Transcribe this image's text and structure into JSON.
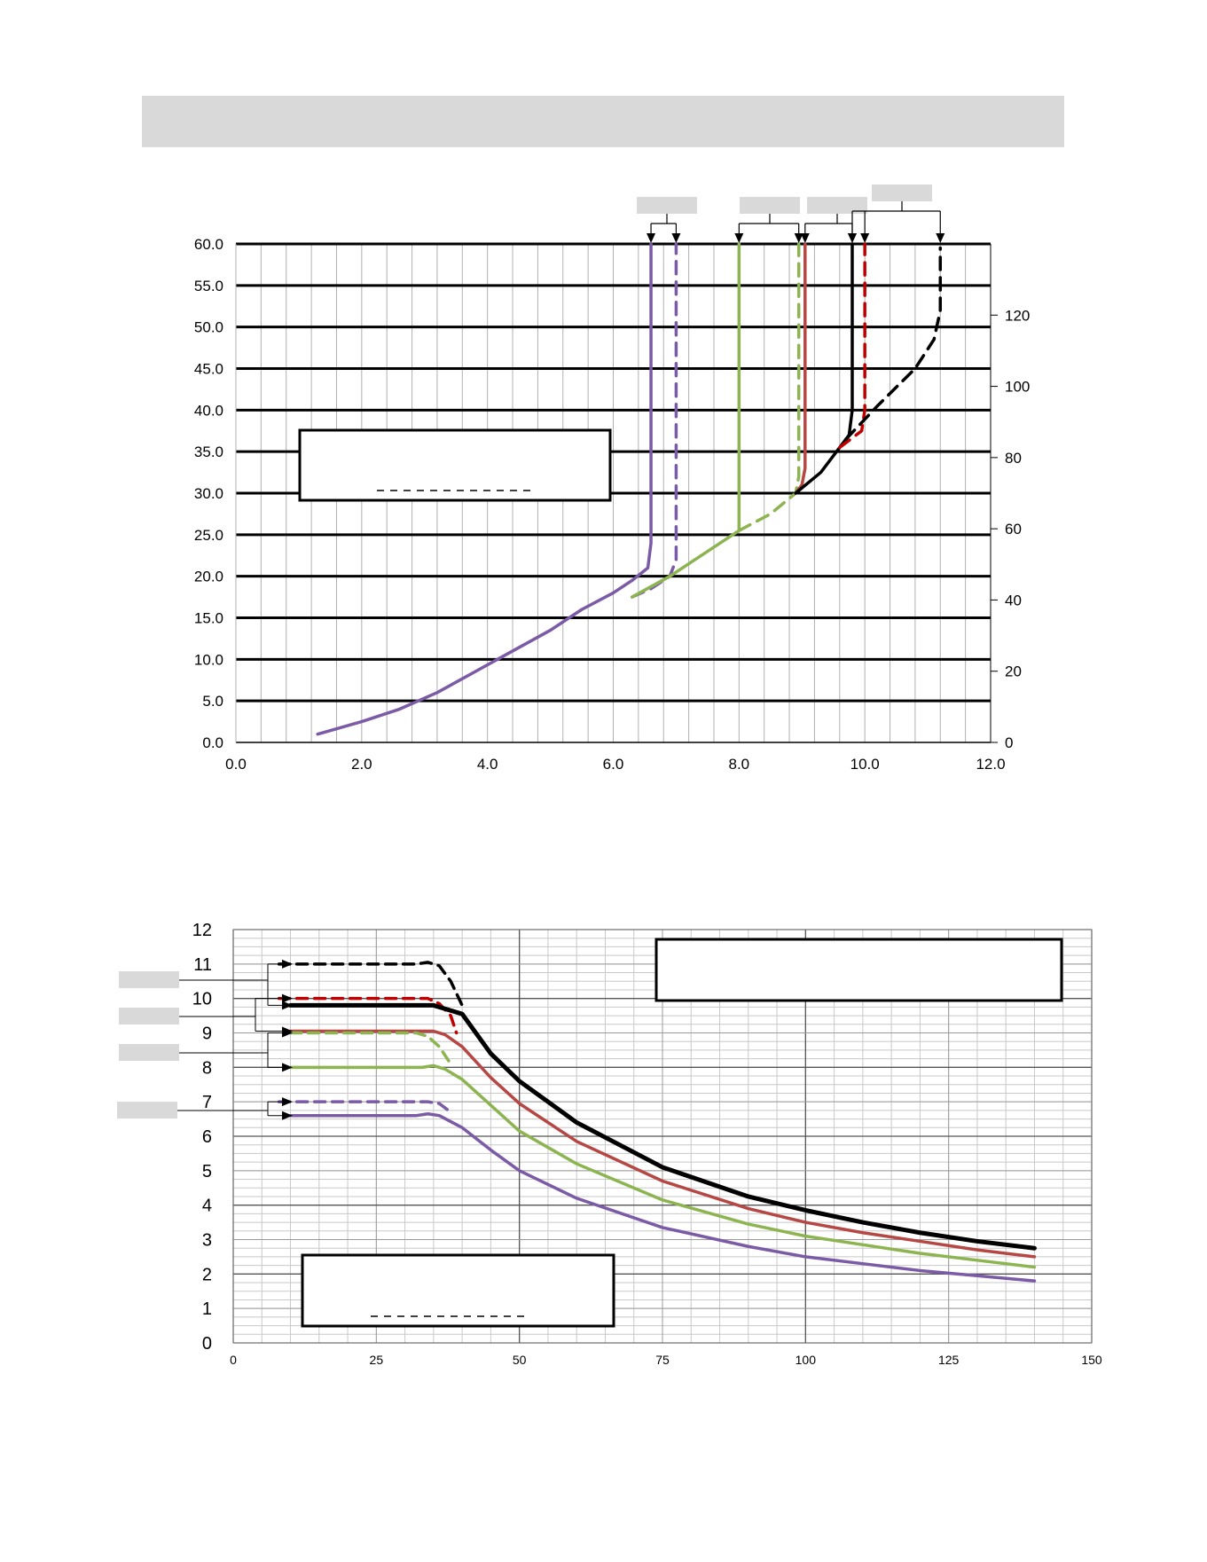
{
  "colors": {
    "purple": "#7b5aa6",
    "green": "#8cb450",
    "red": "#b54744",
    "black": "#000000",
    "red_dashed": "#c00000",
    "banner": "#d9d9d9"
  },
  "chart_data": [
    {
      "type": "line",
      "title": "",
      "xlabel": "",
      "ylabel": "",
      "xlim": [
        0,
        12
      ],
      "ylim": [
        0,
        60
      ],
      "y2lim": [
        0,
        140
      ],
      "x_ticks": [
        "0.0",
        "2.0",
        "4.0",
        "6.0",
        "8.0",
        "10.0",
        "12.0"
      ],
      "y_ticks": [
        "0.0",
        "5.0",
        "10.0",
        "15.0",
        "20.0",
        "25.0",
        "30.0",
        "35.0",
        "40.0",
        "45.0",
        "50.0",
        "55.0",
        "60.0"
      ],
      "y2_ticks": [
        "0",
        "20",
        "40",
        "60",
        "80",
        "100",
        "120"
      ],
      "grid": true,
      "series": [
        {
          "color": "purple",
          "dashed": false,
          "x": [
            1.3,
            2.0,
            2.6,
            3.2,
            3.8,
            4.4,
            5.0,
            5.5,
            6.0,
            6.3,
            6.55,
            6.6,
            6.6
          ],
          "y": [
            1.0,
            2.5,
            4.0,
            6.0,
            8.5,
            11.0,
            13.5,
            16.0,
            18.0,
            19.5,
            21.0,
            24.0,
            60.0
          ]
        },
        {
          "color": "purple",
          "dashed": true,
          "x": [
            6.3,
            6.6,
            6.9,
            7.0,
            7.0
          ],
          "y": [
            17.5,
            18.5,
            20.0,
            22.0,
            60.0
          ]
        },
        {
          "color": "green",
          "dashed": false,
          "x": [
            6.3,
            6.9,
            7.5,
            8.0,
            8.0
          ],
          "y": [
            17.5,
            20.0,
            23.0,
            25.5,
            60.0
          ]
        },
        {
          "color": "green",
          "dashed": true,
          "x": [
            8.0,
            8.5,
            8.9,
            8.95,
            8.95
          ],
          "y": [
            25.5,
            27.5,
            30.0,
            32.0,
            60.0
          ]
        },
        {
          "color": "red",
          "dashed": false,
          "x": [
            8.9,
            9.0,
            9.05,
            9.05
          ],
          "y": [
            30.0,
            31.0,
            33.0,
            60.0
          ]
        },
        {
          "color": "black",
          "dashed": false,
          "x": [
            8.9,
            9.3,
            9.75,
            9.8,
            9.8
          ],
          "y": [
            30.0,
            32.5,
            37.0,
            40.0,
            60.0
          ]
        },
        {
          "color": "red_dashed",
          "dashed": true,
          "x": [
            9.6,
            9.95,
            10.0,
            10.0
          ],
          "y": [
            35.5,
            37.5,
            40.0,
            60.0
          ]
        },
        {
          "color": "black",
          "dashed": true,
          "x": [
            9.7,
            10.2,
            10.8,
            11.1,
            11.2,
            11.2
          ],
          "y": [
            36.5,
            40.5,
            45.0,
            48.5,
            52.0,
            59.5
          ]
        }
      ]
    },
    {
      "type": "line",
      "title": "",
      "xlabel": "",
      "ylabel": "",
      "xlim": [
        0,
        150
      ],
      "ylim": [
        0,
        12
      ],
      "x_ticks": [
        "0",
        "25",
        "50",
        "75",
        "100",
        "125",
        "150"
      ],
      "y_ticks": [
        "0",
        "1",
        "2",
        "3",
        "4",
        "5",
        "6",
        "7",
        "8",
        "9",
        "10",
        "11",
        "12"
      ],
      "grid": true,
      "series": [
        {
          "color": "black",
          "dashed": true,
          "x": [
            8,
            32,
            34,
            36,
            38,
            40
          ],
          "y": [
            11.0,
            11.0,
            11.05,
            10.95,
            10.5,
            9.8
          ]
        },
        {
          "color": "red_dashed",
          "dashed": true,
          "x": [
            8,
            34,
            36,
            38,
            39
          ],
          "y": [
            10.0,
            10.0,
            9.85,
            9.5,
            9.0
          ]
        },
        {
          "color": "black",
          "dashed": false,
          "x": [
            10,
            35,
            38,
            40,
            45,
            50,
            60,
            75,
            90,
            100,
            110,
            120,
            130,
            140
          ],
          "y": [
            9.8,
            9.8,
            9.65,
            9.55,
            8.4,
            7.6,
            6.4,
            5.1,
            4.25,
            3.85,
            3.5,
            3.2,
            2.95,
            2.75
          ]
        },
        {
          "color": "red",
          "dashed": false,
          "x": [
            10,
            33,
            35,
            37,
            40,
            45,
            50,
            60,
            75,
            90,
            100,
            110,
            120,
            130,
            140
          ],
          "y": [
            9.05,
            9.05,
            9.05,
            8.95,
            8.6,
            7.7,
            6.95,
            5.85,
            4.7,
            3.9,
            3.5,
            3.2,
            2.95,
            2.7,
            2.5
          ]
        },
        {
          "color": "green",
          "dashed": true,
          "x": [
            10,
            32,
            34,
            36,
            38
          ],
          "y": [
            9.0,
            9.0,
            8.9,
            8.6,
            8.1
          ]
        },
        {
          "color": "green",
          "dashed": false,
          "x": [
            10,
            33,
            35,
            37,
            40,
            45,
            50,
            60,
            75,
            90,
            100,
            110,
            120,
            130,
            140
          ],
          "y": [
            8.0,
            8.0,
            8.05,
            7.95,
            7.65,
            6.9,
            6.15,
            5.2,
            4.15,
            3.45,
            3.1,
            2.85,
            2.6,
            2.4,
            2.2
          ]
        },
        {
          "color": "purple",
          "dashed": true,
          "x": [
            8,
            34,
            36,
            38
          ],
          "y": [
            7.0,
            7.0,
            6.95,
            6.7
          ]
        },
        {
          "color": "purple",
          "dashed": false,
          "x": [
            10,
            32,
            34,
            36,
            40,
            45,
            50,
            60,
            75,
            90,
            100,
            110,
            120,
            130,
            140
          ],
          "y": [
            6.6,
            6.6,
            6.65,
            6.6,
            6.25,
            5.6,
            5.0,
            4.2,
            3.35,
            2.8,
            2.5,
            2.3,
            2.1,
            1.95,
            1.8
          ]
        }
      ]
    }
  ]
}
